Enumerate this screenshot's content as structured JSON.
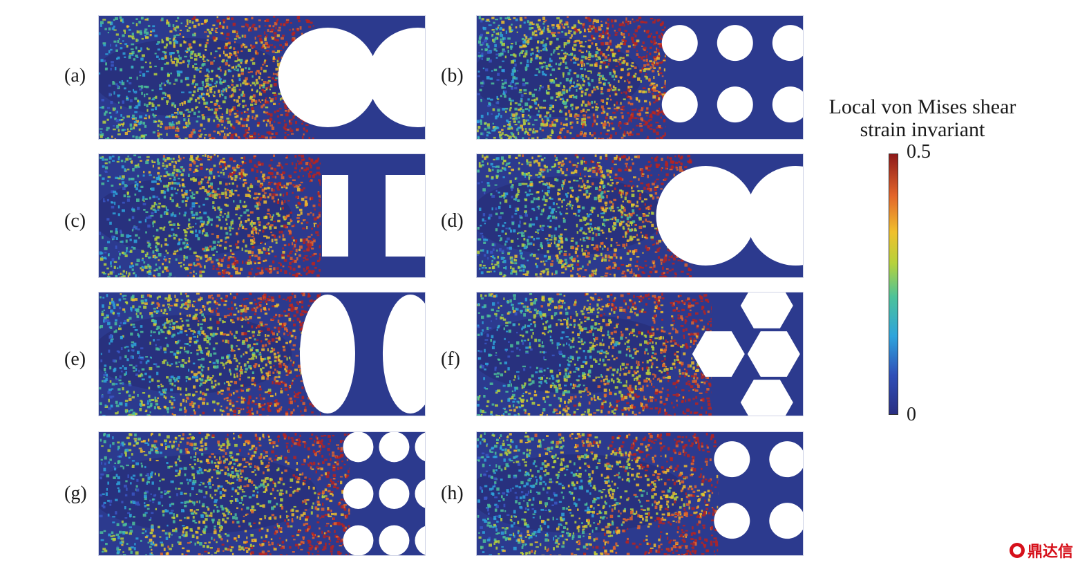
{
  "panels": [
    {
      "label": "(a)",
      "pattern": "single-circle"
    },
    {
      "label": "(b)",
      "pattern": "small-circles-grid"
    },
    {
      "label": "(c)",
      "pattern": "rectangles"
    },
    {
      "label": "(d)",
      "pattern": "single-circle"
    },
    {
      "label": "(e)",
      "pattern": "ellipses"
    },
    {
      "label": "(f)",
      "pattern": "hexagons"
    },
    {
      "label": "(g)",
      "pattern": "dense-circles"
    },
    {
      "label": "(h)",
      "pattern": "small-circles-grid"
    }
  ],
  "colorbar": {
    "title_line1": "Local von Mises shear",
    "title_line2": "strain invariant",
    "max_label": "0.5",
    "min_label": "0",
    "colors": {
      "low": "#2a2f82",
      "mid": "#4cc29a",
      "high": "#8e1a1a"
    }
  },
  "watermark": {
    "text": "鼎达信",
    "color": "#d6101a"
  }
}
